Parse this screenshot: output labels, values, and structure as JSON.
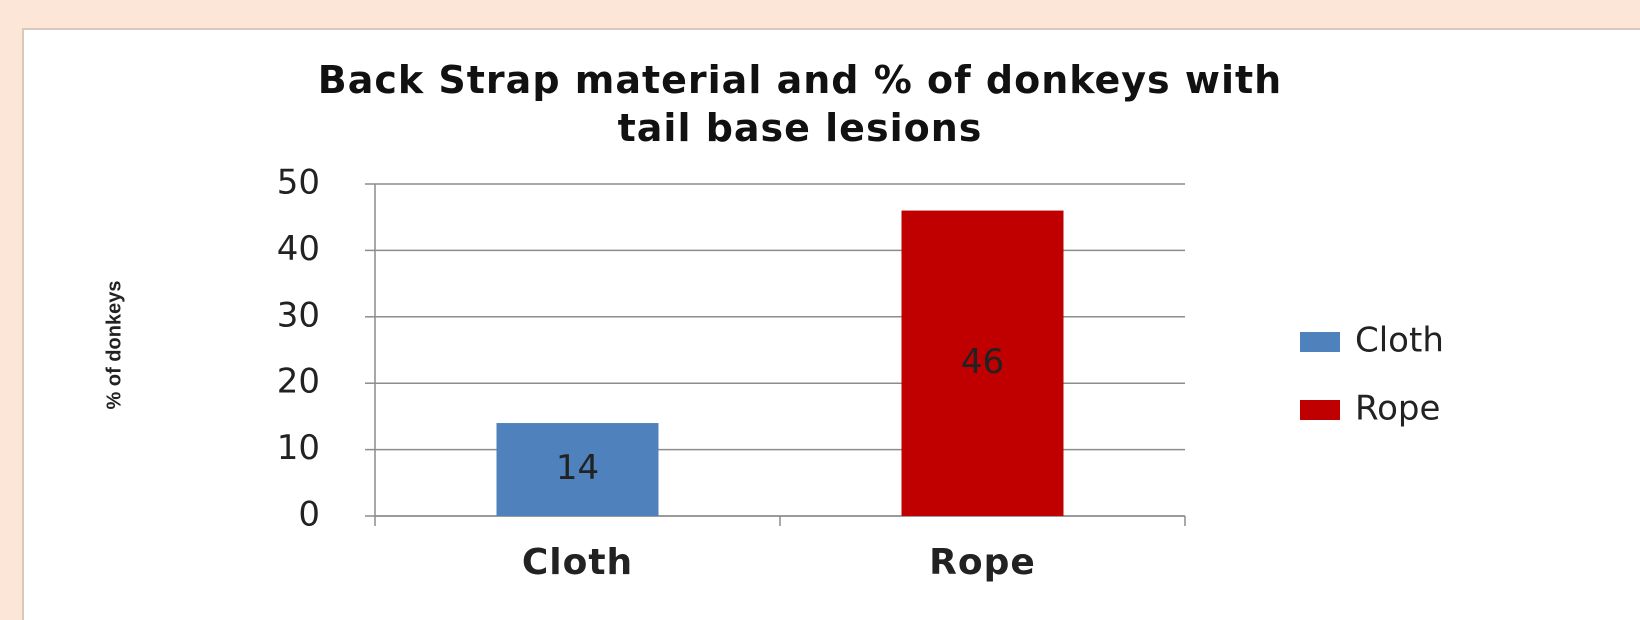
{
  "chart_data": {
    "type": "bar",
    "title": "Back Strap material and % of donkeys with\ntail base lesions",
    "ylabel": "% of donkeys",
    "categories": [
      "Cloth",
      "Rope"
    ],
    "values": [
      14,
      46
    ],
    "colors": [
      "#4f81bd",
      "#c00000"
    ],
    "ylim": [
      0,
      50
    ],
    "yticks": [
      0,
      10,
      20,
      30,
      40,
      50
    ],
    "grid": true,
    "legend": "right"
  }
}
